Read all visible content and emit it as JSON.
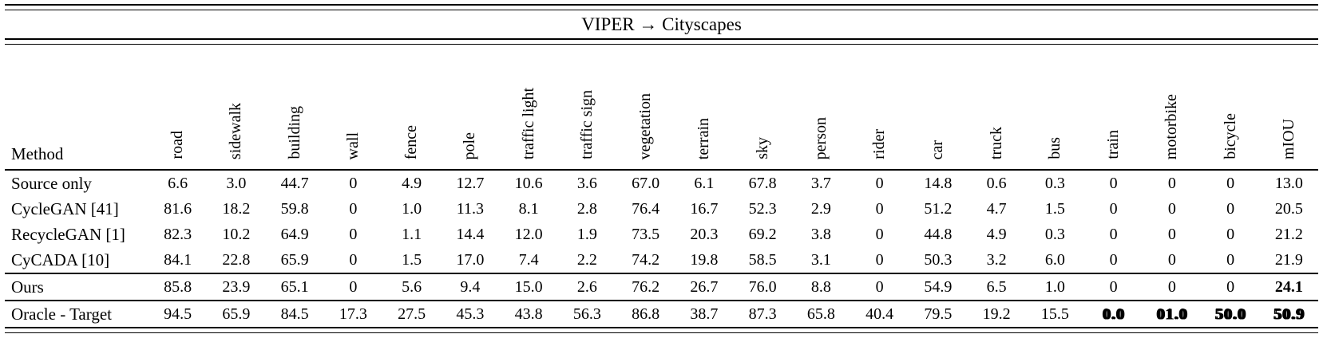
{
  "title": "VIPER → Cityscapes",
  "table": {
    "method_header": "Method",
    "columns": [
      "road",
      "sidewalk",
      "building",
      "wall",
      "fence",
      "pole",
      "traffic light",
      "traffic sign",
      "vegetation",
      "terrain",
      "sky",
      "person",
      "rider",
      "car",
      "truck",
      "bus",
      "train",
      "motorbike",
      "bicycle",
      "mIOU"
    ],
    "rows": [
      {
        "method": "Source only",
        "values": [
          "6.6",
          "3.0",
          "44.7",
          "0",
          "4.9",
          "12.7",
          "10.6",
          "3.6",
          "67.0",
          "6.1",
          "67.8",
          "3.7",
          "0",
          "14.8",
          "0.6",
          "0.3",
          "0",
          "0",
          "0",
          "13.0"
        ]
      },
      {
        "method": "CycleGAN [41]",
        "values": [
          "81.6",
          "18.2",
          "59.8",
          "0",
          "1.0",
          "11.3",
          "8.1",
          "2.8",
          "76.4",
          "16.7",
          "52.3",
          "2.9",
          "0",
          "51.2",
          "4.7",
          "1.5",
          "0",
          "0",
          "0",
          "20.5"
        ]
      },
      {
        "method": "RecycleGAN [1]",
        "values": [
          "82.3",
          "10.2",
          "64.9",
          "0",
          "1.1",
          "14.4",
          "12.0",
          "1.9",
          "73.5",
          "20.3",
          "69.2",
          "3.8",
          "0",
          "44.8",
          "4.9",
          "0.3",
          "0",
          "0",
          "0",
          "21.2"
        ]
      },
      {
        "method": "CyCADA [10]",
        "values": [
          "84.1",
          "22.8",
          "65.9",
          "0",
          "1.5",
          "17.0",
          "7.4",
          "2.2",
          "74.2",
          "19.8",
          "58.5",
          "3.1",
          "0",
          "50.3",
          "3.2",
          "6.0",
          "0",
          "0",
          "0",
          "21.9"
        ]
      },
      {
        "method": "Ours",
        "values": [
          "85.8",
          "23.9",
          "65.1",
          "0",
          "5.6",
          "9.4",
          "15.0",
          "2.6",
          "76.2",
          "26.7",
          "76.0",
          "8.8",
          "0",
          "54.9",
          "6.5",
          "1.0",
          "0",
          "0",
          "0",
          "24.1"
        ],
        "rule_above": true,
        "bold_indices": [
          19
        ]
      },
      {
        "method": "Oracle - Target",
        "values": [
          "94.5",
          "65.9",
          "84.5",
          "17.3",
          "27.5",
          "45.3",
          "43.8",
          "56.3",
          "86.8",
          "38.7",
          "87.3",
          "65.8",
          "40.4",
          "79.5",
          "19.2",
          "15.5",
          "0.0",
          "01.0",
          "50.0",
          "50.9"
        ],
        "rule_above": true,
        "glitch_indices": [
          16,
          17,
          18,
          19
        ]
      }
    ]
  }
}
